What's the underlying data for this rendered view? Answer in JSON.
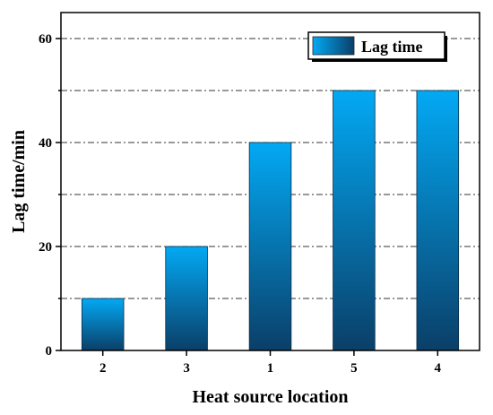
{
  "chart_data": {
    "type": "bar",
    "categories": [
      "2",
      "3",
      "1",
      "5",
      "4"
    ],
    "series": [
      {
        "name": "Lag time",
        "values": [
          10,
          20,
          40,
          50,
          50
        ]
      }
    ],
    "xlabel": "Heat source location",
    "ylabel": "Lag time/min",
    "ylim": [
      0,
      65
    ],
    "yticks": [
      0,
      20,
      40,
      60
    ],
    "grid": true,
    "legend_position": "top-right",
    "colors": {
      "bar_top": "#03a9f4",
      "bar_bottom": "#0a3f68"
    }
  }
}
